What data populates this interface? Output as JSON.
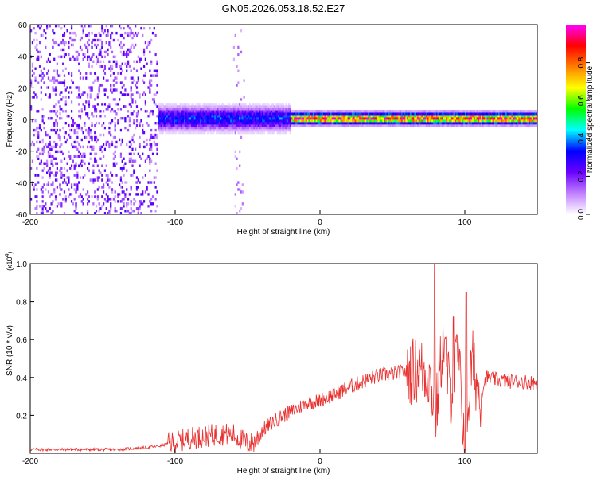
{
  "figure": {
    "title": "GN05.2026.053.18.52.E27"
  },
  "colors": {
    "snr_line": "#e8302f",
    "axis": "#000000",
    "gridline": "#cccccc"
  },
  "chart_data": [
    {
      "type": "heatmap",
      "xlabel": "Height of straight line (km)",
      "ylabel": "Frequency (Hz)",
      "xlim": [
        -200,
        150
      ],
      "ylim": [
        -60,
        60
      ],
      "x_ticks": [
        -200,
        -100,
        0,
        100
      ],
      "y_ticks": [
        -60,
        -40,
        -20,
        0,
        20,
        40,
        60
      ],
      "colorbar": {
        "label": "Normalized spectral amplitude",
        "range": [
          0,
          1
        ],
        "ticks": [
          0.0,
          0.2,
          0.4,
          0.6,
          0.8
        ],
        "tick_labels": [
          "0.0",
          "0.2",
          "0.4",
          "0.6",
          "0.8"
        ],
        "colormap": [
          "#ffffff",
          "#c080ff",
          "#6a00ff",
          "#0000ff",
          "#00ffff",
          "#00ff00",
          "#ffff00",
          "#ff8000",
          "#ff0000",
          "#ff00ff"
        ]
      },
      "features": [
        {
          "x_range": [
            -200,
            -112
          ],
          "freq_range": [
            -60,
            60
          ],
          "amplitude": 0.12,
          "pattern": "broadband scattered noise"
        },
        {
          "x_range": [
            -112,
            -20
          ],
          "freq_center": 0,
          "freq_halfwidth": 6,
          "amplitude": 0.35,
          "pattern": "diffuse band"
        },
        {
          "x_range": [
            -60,
            -52
          ],
          "freq_range": [
            -60,
            60
          ],
          "amplitude": 0.05,
          "pattern": "faint vertical streak"
        },
        {
          "x_range": [
            -20,
            150
          ],
          "freq_center": 0,
          "freq_halfwidth": 3,
          "amplitude": 0.9,
          "pattern": "narrow strong band near 0 Hz"
        }
      ]
    },
    {
      "type": "line",
      "xlabel": "Height of straight line (km)",
      "ylabel": "SNR (10 * v/v)",
      "y_multiplier": "(x10",
      "y_multiplier_exp": "4",
      "y_multiplier_close": ")",
      "xlim": [
        -200,
        150
      ],
      "ylim": [
        0,
        1.0
      ],
      "x_ticks": [
        -200,
        -100,
        0,
        100
      ],
      "y_ticks": [
        0.2,
        0.4,
        0.6,
        0.8,
        1.0
      ],
      "y_tick_labels": [
        "0.2",
        "0.4",
        "0.6",
        "0.8",
        "1.0"
      ],
      "series": [
        {
          "x": [
            -200,
            -180,
            -160,
            -140,
            -120,
            -110,
            -100,
            -90,
            -80,
            -70,
            -60,
            -50,
            -45,
            -40,
            -35,
            -30,
            -25,
            -20,
            -15,
            -10,
            -5,
            0,
            10,
            20,
            30,
            40,
            50,
            60,
            70,
            75,
            80,
            85,
            90,
            95,
            100,
            105,
            110,
            115,
            120,
            130,
            140,
            150
          ],
          "y": [
            0.02,
            0.02,
            0.02,
            0.02,
            0.03,
            0.04,
            0.06,
            0.08,
            0.09,
            0.1,
            0.1,
            0.05,
            0.06,
            0.12,
            0.15,
            0.18,
            0.2,
            0.22,
            0.24,
            0.26,
            0.27,
            0.28,
            0.31,
            0.35,
            0.38,
            0.41,
            0.42,
            0.43,
            0.44,
            0.42,
            0.2,
            0.6,
            0.3,
            0.55,
            0.05,
            0.5,
            0.3,
            0.4,
            0.39,
            0.38,
            0.38,
            0.37
          ]
        }
      ],
      "peaks": [
        {
          "x": 79,
          "y": 1.0
        },
        {
          "x": 92,
          "y": 0.72
        },
        {
          "x": 101,
          "y": 0.85
        },
        {
          "x": 100,
          "y": 0.02
        }
      ]
    }
  ]
}
